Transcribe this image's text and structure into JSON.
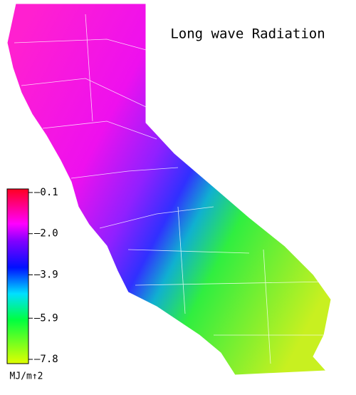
{
  "title": "Long wave Radiation",
  "colorbar": {
    "range": [
      -0.1,
      -7.8
    ],
    "ticks": [
      {
        "value": -0.1,
        "label": "–0.1"
      },
      {
        "value": -2.0,
        "label": "–2.0"
      },
      {
        "value": -3.9,
        "label": "–3.9"
      },
      {
        "value": -5.9,
        "label": "–5.9"
      },
      {
        "value": -7.8,
        "label": "–7.8"
      }
    ],
    "unit": "MJ/m↑2"
  }
}
